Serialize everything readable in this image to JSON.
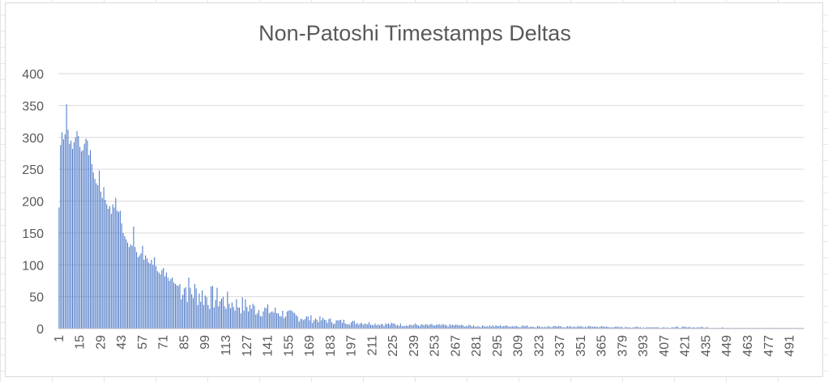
{
  "chart_data": {
    "type": "bar",
    "title": "Non-Patoshi Timestamps Deltas",
    "xlabel": "",
    "ylabel": "",
    "ylim": [
      0,
      400
    ],
    "y_ticks": [
      0,
      50,
      100,
      150,
      200,
      250,
      300,
      350,
      400
    ],
    "x_range": [
      1,
      500
    ],
    "x_tick_start": 1,
    "x_tick_step": 14,
    "x_tick_count": 36,
    "grid": "horizontal",
    "legend": "none",
    "bar_color": "#4472c4",
    "gridline_color": "#d9d9d9",
    "anchors": [
      [
        1,
        190
      ],
      [
        2,
        288
      ],
      [
        3,
        308
      ],
      [
        4,
        297
      ],
      [
        5,
        305
      ],
      [
        6,
        352
      ],
      [
        7,
        312
      ],
      [
        8,
        290
      ],
      [
        9,
        295
      ],
      [
        10,
        282
      ],
      [
        11,
        292
      ],
      [
        12,
        300
      ],
      [
        13,
        310
      ],
      [
        14,
        302
      ],
      [
        15,
        285
      ],
      [
        16,
        278
      ],
      [
        17,
        280
      ],
      [
        18,
        290
      ],
      [
        19,
        298
      ],
      [
        20,
        295
      ],
      [
        21,
        272
      ],
      [
        22,
        280
      ],
      [
        23,
        258
      ],
      [
        24,
        245
      ],
      [
        25,
        235
      ],
      [
        26,
        228
      ],
      [
        27,
        225
      ],
      [
        28,
        248
      ],
      [
        29,
        215
      ],
      [
        30,
        205
      ],
      [
        31,
        222
      ],
      [
        32,
        202
      ],
      [
        33,
        195
      ],
      [
        34,
        188
      ],
      [
        35,
        192
      ],
      [
        36,
        180
      ],
      [
        37,
        195
      ],
      [
        38,
        190
      ],
      [
        39,
        205
      ],
      [
        40,
        185
      ],
      [
        41,
        183
      ],
      [
        42,
        185
      ],
      [
        43,
        165
      ],
      [
        44,
        150
      ],
      [
        45,
        145
      ],
      [
        46,
        140
      ],
      [
        47,
        135
      ],
      [
        48,
        128
      ],
      [
        49,
        132
      ],
      [
        50,
        130
      ],
      [
        51,
        160
      ],
      [
        52,
        128
      ],
      [
        53,
        120
      ],
      [
        54,
        112
      ],
      [
        55,
        115
      ],
      [
        56,
        118
      ],
      [
        57,
        130
      ],
      [
        58,
        108
      ],
      [
        59,
        115
      ],
      [
        60,
        110
      ],
      [
        61,
        104
      ],
      [
        62,
        102
      ],
      [
        63,
        108
      ],
      [
        64,
        100
      ],
      [
        65,
        112
      ],
      [
        66,
        98
      ],
      [
        67,
        90
      ],
      [
        68,
        88
      ],
      [
        69,
        85
      ],
      [
        70,
        92
      ],
      [
        71,
        95
      ],
      [
        72,
        82
      ],
      [
        73,
        88
      ],
      [
        74,
        80
      ],
      [
        75,
        75
      ],
      [
        76,
        78
      ],
      [
        77,
        80
      ],
      [
        78,
        72
      ],
      [
        79,
        70
      ],
      [
        80,
        68
      ],
      [
        85,
        66
      ],
      [
        90,
        58
      ],
      [
        95,
        55
      ],
      [
        99,
        50
      ],
      [
        105,
        48
      ],
      [
        110,
        45
      ],
      [
        113,
        42
      ],
      [
        120,
        38
      ],
      [
        127,
        35
      ],
      [
        135,
        30
      ],
      [
        141,
        28
      ],
      [
        148,
        25
      ],
      [
        155,
        22
      ],
      [
        162,
        18
      ],
      [
        169,
        16
      ],
      [
        176,
        14
      ],
      [
        183,
        12
      ],
      [
        190,
        11
      ],
      [
        197,
        10
      ],
      [
        205,
        9
      ],
      [
        211,
        8
      ],
      [
        218,
        7
      ],
      [
        225,
        7
      ],
      [
        232,
        6
      ],
      [
        239,
        6
      ],
      [
        250,
        5
      ],
      [
        260,
        5
      ],
      [
        267,
        5
      ],
      [
        280,
        4
      ],
      [
        295,
        4
      ],
      [
        309,
        4
      ],
      [
        323,
        3
      ],
      [
        337,
        3
      ],
      [
        351,
        3
      ],
      [
        365,
        3
      ],
      [
        379,
        2
      ],
      [
        393,
        2
      ],
      [
        407,
        2
      ],
      [
        421,
        2
      ],
      [
        435,
        2
      ],
      [
        449,
        1
      ],
      [
        463,
        1
      ],
      [
        477,
        1
      ],
      [
        491,
        1
      ],
      [
        500,
        1
      ]
    ]
  }
}
